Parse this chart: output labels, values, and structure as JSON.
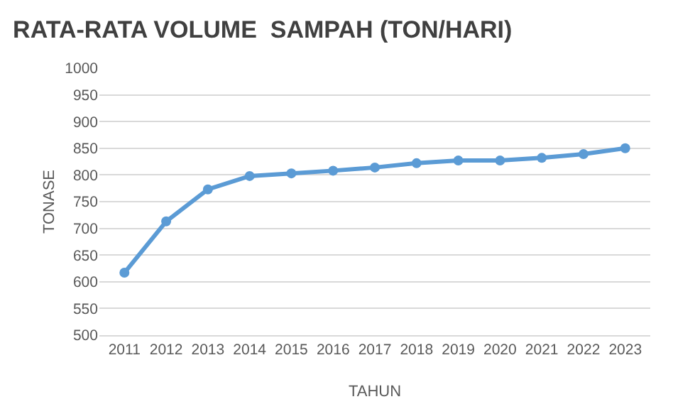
{
  "chart_data": {
    "type": "line",
    "title": "RATA-RATA VOLUME  SAMPAH (TON/HARI)",
    "xlabel": "TAHUN",
    "ylabel": "TONASE",
    "categories": [
      "2011",
      "2012",
      "2013",
      "2014",
      "2015",
      "2016",
      "2017",
      "2018",
      "2019",
      "2020",
      "2021",
      "2022",
      "2023"
    ],
    "series": [
      {
        "color": "#5b9bd5",
        "values": [
          617,
          713,
          773,
          798,
          803,
          808,
          814,
          822,
          827,
          827,
          832,
          839,
          850
        ]
      }
    ],
    "ylim": [
      500,
      1000
    ],
    "yticks": [
      500,
      550,
      600,
      650,
      700,
      750,
      800,
      850,
      900,
      950,
      1000
    ],
    "grid": "y",
    "legend": false,
    "marker": "circle",
    "line_style": "solid"
  }
}
